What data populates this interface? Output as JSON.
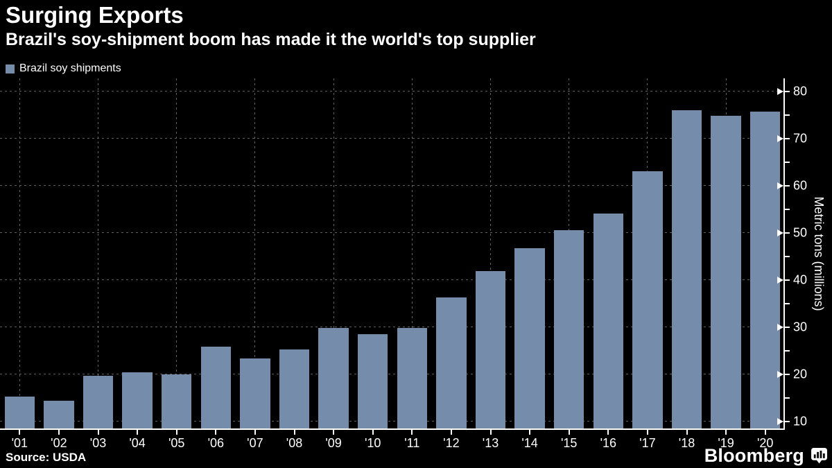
{
  "header": {
    "title": "Surging Exports",
    "subtitle": "Brazil's soy-shipment boom has made it the world's top supplier"
  },
  "legend": {
    "label": "Brazil soy shipments"
  },
  "chart_data": {
    "type": "bar",
    "series_name": "Brazil soy shipments",
    "categories": [
      "'01",
      "'02",
      "'03",
      "'04",
      "'05",
      "'06",
      "'07",
      "'08",
      "'09",
      "'10",
      "'11",
      "'12",
      "'13",
      "'14",
      "'15",
      "'16",
      "'17",
      "'18",
      "'19",
      "'20"
    ],
    "values": [
      15.3,
      14.5,
      19.8,
      20.5,
      20.1,
      26.0,
      23.5,
      25.4,
      29.9,
      28.6,
      29.9,
      36.3,
      41.9,
      46.8,
      50.6,
      54.2,
      63.1,
      76.0,
      74.9,
      75.7
    ],
    "title": "Surging Exports",
    "xlabel": "",
    "ylabel": "Metric tons (millions)",
    "ylim": [
      8.3,
      82.8
    ],
    "y_major_ticks": [
      10,
      20,
      30,
      40,
      50,
      60,
      70,
      80
    ],
    "y_minor_tick_step": 5,
    "y_axis_side": "right",
    "grid": {
      "horizontal": "dashed lines at every major y tick",
      "vertical": "dashed lines at centers of odd-year bars ('01,'03,...,'19)"
    },
    "legend_position": "top-left",
    "colors": {
      "bar": "#758CAB",
      "grid": "#616161",
      "axis": "#FFFFFF",
      "text": "#FFFFFF",
      "background": "#000000"
    }
  },
  "footer": {
    "source": "Source: USDA",
    "brand": "Bloomberg"
  }
}
